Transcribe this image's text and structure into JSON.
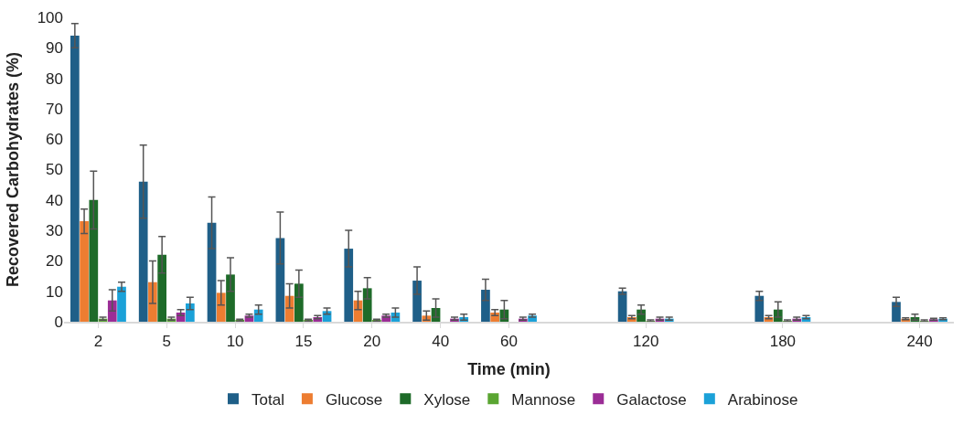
{
  "chart_data": {
    "type": "bar",
    "xlabel": "Time (min)",
    "ylabel": "Recovered Carbohydrates (%)",
    "categories": [
      "2",
      "5",
      "10",
      "15",
      "20",
      "40",
      "60",
      null,
      "120",
      null,
      "180",
      null,
      "240"
    ],
    "ylim": [
      0,
      100
    ],
    "yticks": [
      0,
      10,
      20,
      30,
      40,
      50,
      60,
      70,
      80,
      90,
      100
    ],
    "legend": "bottom",
    "series": [
      {
        "name": "Total",
        "color": "#1f5f88",
        "values": [
          94,
          46,
          32.5,
          27.5,
          24,
          13.5,
          10.5,
          null,
          10,
          null,
          8.5,
          null,
          6.5
        ],
        "errors": [
          4,
          12,
          8.5,
          8.5,
          6,
          4.5,
          3.5,
          null,
          1,
          null,
          1.5,
          null,
          1.5
        ]
      },
      {
        "name": "Glucose",
        "color": "#ed7d31",
        "values": [
          33,
          13,
          9.5,
          8.5,
          7,
          2,
          3,
          null,
          1.5,
          null,
          1.5,
          null,
          1
        ],
        "errors": [
          4,
          7,
          4,
          4,
          3,
          1.5,
          1,
          null,
          0.5,
          null,
          0.5,
          null,
          0.3
        ]
      },
      {
        "name": "Xylose",
        "color": "#1e6b29",
        "values": [
          40,
          22,
          15.5,
          12.5,
          11,
          4.5,
          4,
          null,
          4,
          null,
          4,
          null,
          1.5
        ],
        "errors": [
          9.5,
          6,
          5.5,
          4.5,
          3.5,
          3,
          3,
          null,
          1.5,
          null,
          2.5,
          null,
          1
        ]
      },
      {
        "name": "Mannose",
        "color": "#5aa532",
        "values": [
          1,
          1,
          0.5,
          0.5,
          0.5,
          null,
          null,
          null,
          0.3,
          null,
          0.3,
          null,
          0.3
        ],
        "errors": [
          0.5,
          0.5,
          0.3,
          0.3,
          0.3,
          null,
          null,
          null,
          0.3,
          null,
          0.3,
          null,
          0.3
        ]
      },
      {
        "name": "Galactose",
        "color": "#9b2d96",
        "values": [
          7,
          3,
          2,
          1.5,
          2,
          1,
          1,
          null,
          1,
          null,
          1,
          null,
          0.8
        ],
        "errors": [
          3.5,
          1,
          0.5,
          0.5,
          0.5,
          0.5,
          0.5,
          null,
          0.5,
          null,
          0.5,
          null,
          0.3
        ]
      },
      {
        "name": "Arabinose",
        "color": "#1ba1d8",
        "values": [
          11.5,
          6,
          4,
          3.5,
          3,
          1.5,
          2,
          null,
          1,
          null,
          1.5,
          null,
          1
        ],
        "errors": [
          1.5,
          2,
          1.5,
          1,
          1.5,
          1,
          0.5,
          null,
          0.5,
          null,
          0.5,
          null,
          0.3
        ]
      }
    ]
  }
}
